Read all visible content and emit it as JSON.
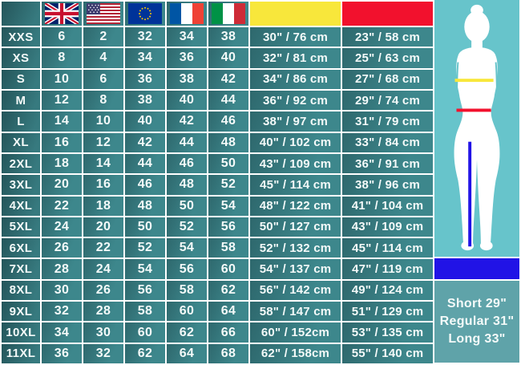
{
  "colors": {
    "cell-a": "#2e686d",
    "cell-b": "#3d878c",
    "size-a": "#24555a",
    "size-b": "#377a7f",
    "yellow": "#f8e73b",
    "red": "#f2112d",
    "blue": "#2113e6",
    "panel-cyan": "#67c4cb",
    "panel-teal": "#5fa3a9",
    "text": "#f4faf9"
  },
  "header": {
    "corner_label": "",
    "flags": [
      {
        "icon": "flag-uk-icon"
      },
      {
        "icon": "flag-us-icon"
      },
      {
        "icon": "flag-eu-icon"
      },
      {
        "icon": "flag-france-icon"
      },
      {
        "icon": "flag-italy-icon"
      }
    ],
    "bust_swatch_color": "#f8e73b",
    "waist_swatch_color": "#f2112d",
    "inseam_swatch_color": "#2113e6"
  },
  "table": {
    "rows": [
      {
        "size": "XXS",
        "uk": "6",
        "us": "2",
        "eu": "32",
        "fr": "34",
        "it": "38",
        "chest": "30\" / 76 cm",
        "waist": "23\" / 58 cm"
      },
      {
        "size": "XS",
        "uk": "8",
        "us": "4",
        "eu": "34",
        "fr": "36",
        "it": "40",
        "chest": "32\" / 81 cm",
        "waist": "25\" / 63 cm"
      },
      {
        "size": "S",
        "uk": "10",
        "us": "6",
        "eu": "36",
        "fr": "38",
        "it": "42",
        "chest": "34\" / 86 cm",
        "waist": "27\" / 68 cm"
      },
      {
        "size": "M",
        "uk": "12",
        "us": "8",
        "eu": "38",
        "fr": "40",
        "it": "44",
        "chest": "36\" / 92 cm",
        "waist": "29\" / 74 cm"
      },
      {
        "size": "L",
        "uk": "14",
        "us": "10",
        "eu": "40",
        "fr": "42",
        "it": "46",
        "chest": "38\" / 97 cm",
        "waist": "31\" / 79 cm"
      },
      {
        "size": "XL",
        "uk": "16",
        "us": "12",
        "eu": "42",
        "fr": "44",
        "it": "48",
        "chest": "40\" / 102 cm",
        "waist": "33\" / 84 cm"
      },
      {
        "size": "2XL",
        "uk": "18",
        "us": "14",
        "eu": "44",
        "fr": "46",
        "it": "50",
        "chest": "43\" / 109 cm",
        "waist": "36\" / 91 cm"
      },
      {
        "size": "3XL",
        "uk": "20",
        "us": "16",
        "eu": "46",
        "fr": "48",
        "it": "52",
        "chest": "45\" / 114 cm",
        "waist": "38\" / 96 cm"
      },
      {
        "size": "4XL",
        "uk": "22",
        "us": "18",
        "eu": "48",
        "fr": "50",
        "it": "54",
        "chest": "48\" / 122 cm",
        "waist": "41\" / 104 cm"
      },
      {
        "size": "5XL",
        "uk": "24",
        "us": "20",
        "eu": "50",
        "fr": "52",
        "it": "56",
        "chest": "50\" / 127 cm",
        "waist": "43\" / 109 cm"
      },
      {
        "size": "6XL",
        "uk": "26",
        "us": "22",
        "eu": "52",
        "fr": "54",
        "it": "58",
        "chest": "52\" / 132 cm",
        "waist": "45\" / 114 cm"
      },
      {
        "size": "7XL",
        "uk": "28",
        "us": "24",
        "eu": "54",
        "fr": "56",
        "it": "60",
        "chest": "54\" / 137 cm",
        "waist": "47\" / 119 cm"
      },
      {
        "size": "8XL",
        "uk": "30",
        "us": "26",
        "eu": "56",
        "fr": "58",
        "it": "62",
        "chest": "56\" / 142 cm",
        "waist": "49\" / 124 cm"
      },
      {
        "size": "9XL",
        "uk": "32",
        "us": "28",
        "eu": "58",
        "fr": "60",
        "it": "64",
        "chest": "58\" / 147 cm",
        "waist": "51\" / 129 cm"
      },
      {
        "size": "10XL",
        "uk": "34",
        "us": "30",
        "eu": "60",
        "fr": "62",
        "it": "66",
        "chest": "60\" / 152cm",
        "waist": "53\" / 135 cm"
      },
      {
        "size": "11XL",
        "uk": "36",
        "us": "32",
        "eu": "62",
        "fr": "64",
        "it": "68",
        "chest": "62\" / 158cm",
        "waist": "55\" / 140 cm"
      }
    ]
  },
  "panel": {
    "figure": "female-body-silhouette",
    "measure_lines": [
      {
        "icon": "bust-line-yellow",
        "color": "#f8e73b"
      },
      {
        "icon": "waist-line-red",
        "color": "#f2112d"
      },
      {
        "icon": "inseam-line-blue",
        "color": "#2113e6"
      }
    ],
    "leg_lengths": [
      "Short 29\"",
      "Regular 31\"",
      "Long 33\""
    ]
  }
}
